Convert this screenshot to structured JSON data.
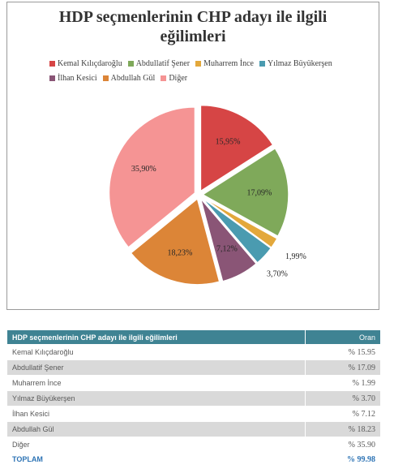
{
  "chart_data": {
    "type": "pie",
    "title_line1": "HDP seçmenlerinin CHP adayı ile ilgili",
    "title_line2": "eğilimleri",
    "categories": [
      "Kemal Kılıçdaroğlu",
      "Abdullatif Şener",
      "Muharrem İnce",
      "Yılmaz Büyükerşen",
      "İlhan Kesici",
      "Abdullah Gül",
      "Diğer"
    ],
    "values": [
      15.95,
      17.09,
      1.99,
      3.7,
      7.12,
      18.23,
      35.9
    ],
    "labels": [
      "15,95%",
      "17,09%",
      "1,99%",
      "3,70%",
      "7,12%",
      "18,23%",
      "35,90%"
    ],
    "colors": [
      "#d64545",
      "#7fa95a",
      "#e3a83b",
      "#4a9bb0",
      "#8a5576",
      "#dc8537",
      "#f59494"
    ],
    "legend_position": "top",
    "start_angle": "12 o'clock, clockwise"
  },
  "table": {
    "header_title": "HDP seçmenlerinin CHP adayı ile ilgili eğilimleri",
    "header_value": "Oran",
    "rows": [
      {
        "name": "Kemal Kılıçdaroğlu",
        "value": "% 15.95"
      },
      {
        "name": "Abdullatif Şener",
        "value": "% 17.09"
      },
      {
        "name": "Muharrem İnce",
        "value": "% 1.99"
      },
      {
        "name": "Yılmaz Büyükerşen",
        "value": "% 3.70"
      },
      {
        "name": "İlhan Kesici",
        "value": "% 7.12"
      },
      {
        "name": "Abdullah Gül",
        "value": "% 18.23"
      },
      {
        "name": "Diğer",
        "value": "% 35.90"
      }
    ],
    "total_name": "TOPLAM",
    "total_value": "% 99.98"
  }
}
